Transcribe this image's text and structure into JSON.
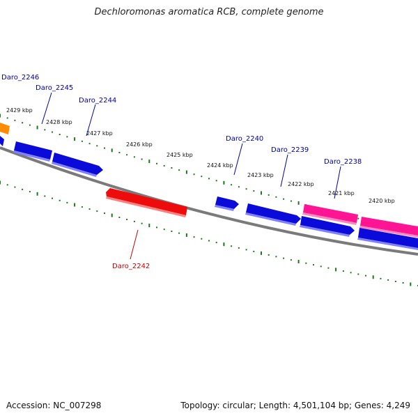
{
  "title": "Dechloromonas aromatica RCB, complete genome",
  "footer": {
    "accession": "Accession: NC_007298",
    "topology": "Topology: circular; Length: 4,501,104 bp; Genes: 4,249"
  },
  "colors": {
    "backbone": "#7a7a7a",
    "forward_gene": "#0b0bd9",
    "reverse_gene": "#ee0b0b",
    "pink_gene": "#ff1493",
    "orange_gene": "#ff8c00",
    "tick": "#1a7a1a",
    "forward_label": "#0000aa",
    "reverse_label": "#cc0000"
  },
  "ticks": [
    "2429 kbp",
    "2428 kbp",
    "2427 kbp",
    "2426 kbp",
    "2425 kbp",
    "2424 kbp",
    "2423 kbp",
    "2422 kbp",
    "2421 kbp",
    "2420 kbp"
  ],
  "gene_labels": [
    {
      "id": "Daro_2246",
      "text": "Daro_2246",
      "strand": "forward"
    },
    {
      "id": "Daro_2245",
      "text": "Daro_2245",
      "strand": "forward"
    },
    {
      "id": "Daro_2244",
      "text": "Daro_2244",
      "strand": "forward"
    },
    {
      "id": "Daro_2240",
      "text": "Daro_2240",
      "strand": "forward"
    },
    {
      "id": "Daro_2239",
      "text": "Daro_2239",
      "strand": "forward"
    },
    {
      "id": "Daro_2238",
      "text": "Daro_2238",
      "strand": "forward"
    },
    {
      "id": "Daro_2242",
      "text": "Daro_2242",
      "strand": "reverse"
    }
  ]
}
